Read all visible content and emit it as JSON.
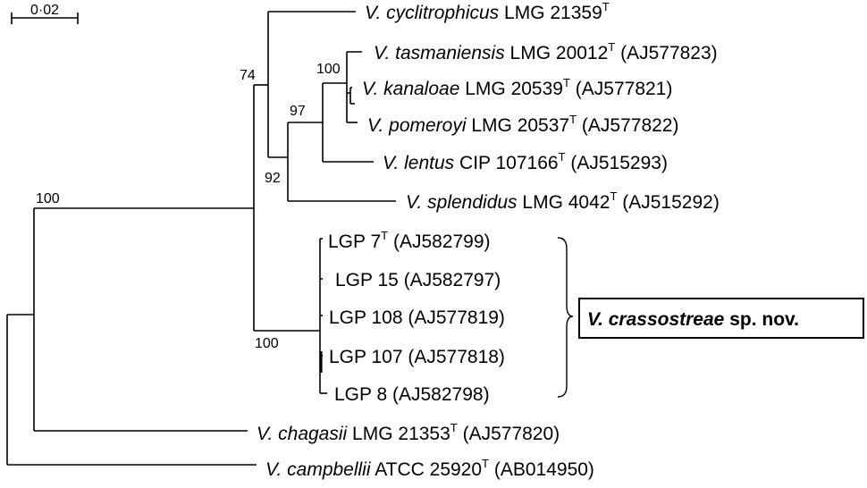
{
  "scale_bar": {
    "label": "0·02"
  },
  "bootstraps": [
    "100",
    "74",
    "97",
    "92",
    "100",
    "100"
  ],
  "taxa": [
    {
      "id": "cyclitrophicus",
      "genus": "V.",
      "epithet": "cyclitrophicus",
      "strain": "LMG 21359",
      "type_mark": "T",
      "accession": ""
    },
    {
      "id": "tasmaniensis",
      "genus": "V.",
      "epithet": "tasmaniensis",
      "strain": "LMG 20012",
      "type_mark": "T",
      "accession": "(AJ577823)"
    },
    {
      "id": "kanaloae",
      "genus": "V.",
      "epithet": "kanaloae",
      "strain": "LMG 20539",
      "type_mark": "T",
      "accession": "(AJ577821)"
    },
    {
      "id": "pomeroyi",
      "genus": "V.",
      "epithet": "pomeroyi",
      "strain": "LMG 20537",
      "type_mark": "T",
      "accession": "(AJ577822)"
    },
    {
      "id": "lentus",
      "genus": "V.",
      "epithet": "lentus",
      "strain": "CIP 107166",
      "type_mark": "T",
      "accession": "(AJ515293)"
    },
    {
      "id": "splendidus",
      "genus": "V.",
      "epithet": "splendidus",
      "strain": "LMG 4042",
      "type_mark": "T",
      "accession": "(AJ515292)"
    },
    {
      "id": "lgp7",
      "genus": "",
      "epithet": "",
      "strain": "LGP 7",
      "type_mark": "T",
      "accession": "(AJ582799)"
    },
    {
      "id": "lgp15",
      "genus": "",
      "epithet": "",
      "strain": "LGP 15",
      "type_mark": "",
      "accession": "(AJ582797)"
    },
    {
      "id": "lgp108",
      "genus": "",
      "epithet": "",
      "strain": "LGP 108",
      "type_mark": "",
      "accession": "(AJ577819)"
    },
    {
      "id": "lgp107",
      "genus": "",
      "epithet": "",
      "strain": "LGP 107",
      "type_mark": "",
      "accession": "(AJ577818)"
    },
    {
      "id": "lgp8",
      "genus": "",
      "epithet": "",
      "strain": "LGP 8",
      "type_mark": "",
      "accession": "(AJ582798)"
    },
    {
      "id": "chagasii",
      "genus": "V.",
      "epithet": "chagasii",
      "strain": "LMG 21353",
      "type_mark": "T",
      "accession": "(AJ577820)"
    },
    {
      "id": "campbellii",
      "genus": "V.",
      "epithet": "campbellii",
      "strain": "ATCC 25920",
      "type_mark": "T",
      "accession": "(AB014950)"
    }
  ],
  "new_species": {
    "name": "V. crassostreae",
    "suffix": "sp. nov."
  }
}
